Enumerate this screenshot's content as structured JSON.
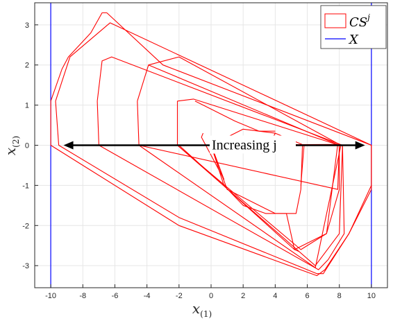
{
  "chart_data": {
    "type": "line",
    "xlabel": "x",
    "xlabel_sub": "(1)",
    "ylabel": "x",
    "ylabel_sub": "(2)",
    "xlim": [
      -11,
      11
    ],
    "ylim": [
      -3.55,
      3.55
    ],
    "xticks": [
      -10,
      -8,
      -6,
      -4,
      -2,
      0,
      2,
      4,
      6,
      8,
      10
    ],
    "yticks": [
      -3,
      -2,
      -1,
      0,
      1,
      2,
      3
    ],
    "grid": true,
    "legend_position": "top-right",
    "colors": {
      "cs": "#ff0000",
      "x": "#0000ff",
      "arrow": "#000000",
      "grid": "#e6e6e6",
      "axes": "#262626"
    },
    "legend": [
      {
        "name": "CS",
        "superscript": "j",
        "symbol": "box"
      },
      {
        "name": "X",
        "symbol": "line"
      }
    ],
    "annotation": {
      "text": "Increasing j",
      "arrow_from": [
        -9.2,
        0
      ],
      "arrow_to": [
        9.6,
        0
      ],
      "label_x": 0,
      "label_y": 0
    },
    "constraint_lines": [
      [
        [
          -10,
          -3.55
        ],
        [
          -10,
          3.55
        ]
      ],
      [
        [
          10,
          -3.55
        ],
        [
          10,
          3.55
        ]
      ]
    ],
    "series": [
      {
        "points": [
          [
            -10,
            1.1
          ],
          [
            -9.3,
            1.9
          ],
          [
            -8.9,
            2.2
          ],
          [
            -7.5,
            2.8
          ],
          [
            -6.8,
            3.3
          ],
          [
            -6.5,
            3.3
          ],
          [
            -3,
            2.0
          ],
          [
            10,
            0
          ],
          [
            10,
            -1.1
          ],
          [
            8.6,
            -2.2
          ],
          [
            7.1,
            -3.1
          ],
          [
            6.6,
            -3.25
          ],
          [
            -2,
            -2.0
          ],
          [
            -10,
            0
          ],
          [
            -10,
            1.1
          ]
        ]
      },
      {
        "points": [
          [
            -9.7,
            1.1
          ],
          [
            -9.5,
            0
          ],
          [
            -2,
            -1.8
          ],
          [
            6.6,
            -3.2
          ],
          [
            7.0,
            -3.2
          ],
          [
            8.6,
            -2.2
          ],
          [
            10,
            -1
          ],
          [
            10,
            0
          ],
          [
            -6.3,
            3.05
          ],
          [
            -8.8,
            2.2
          ],
          [
            -9.7,
            1.1
          ]
        ]
      },
      {
        "points": [
          [
            -7.1,
            1.1
          ],
          [
            -7.0,
            0
          ],
          [
            6.7,
            -3.1
          ],
          [
            7.3,
            -2.85
          ],
          [
            8.3,
            -2.2
          ],
          [
            8.2,
            0
          ],
          [
            -6.2,
            2.2
          ],
          [
            -6.8,
            2.1
          ],
          [
            -7.1,
            1.1
          ]
        ]
      },
      {
        "points": [
          [
            -4.6,
            1.1
          ],
          [
            -4.5,
            0
          ],
          [
            6.5,
            -3.05
          ],
          [
            8.1,
            0
          ],
          [
            -2,
            2.2
          ],
          [
            -3.9,
            2.0
          ],
          [
            -4.6,
            1.1
          ]
        ]
      },
      {
        "points": [
          [
            -4.5,
            0
          ],
          [
            7.9,
            -1.1
          ],
          [
            8.0,
            0
          ],
          [
            -3.9,
            2.0
          ]
        ]
      },
      {
        "points": [
          [
            -2.1,
            1.1
          ],
          [
            -2.1,
            0
          ],
          [
            5.6,
            -2.6
          ],
          [
            7.2,
            -2.2
          ],
          [
            8.0,
            -1.1
          ],
          [
            8.0,
            0
          ],
          [
            -1.1,
            1.15
          ],
          [
            -2.1,
            1.1
          ]
        ]
      },
      {
        "points": [
          [
            -2.1,
            0
          ],
          [
            6.5,
            -3.0
          ],
          [
            8.0,
            -2.2
          ],
          [
            8.2,
            0
          ]
        ]
      },
      {
        "points": [
          [
            -2.0,
            0
          ],
          [
            5.2,
            -2.6
          ],
          [
            4.7,
            -1.7
          ],
          [
            3.4,
            -1.7
          ],
          [
            2.0,
            -1.5
          ],
          [
            0.8,
            -1.0
          ],
          [
            0,
            0
          ],
          [
            2.0,
            0.4
          ],
          [
            4.0,
            0.3
          ],
          [
            5.8,
            0
          ],
          [
            5.6,
            -1.0
          ]
        ]
      },
      {
        "points": [
          [
            0,
            0
          ],
          [
            1.0,
            -1.1
          ],
          [
            2.0,
            -1.3
          ],
          [
            4.0,
            -1.7
          ],
          [
            5.3,
            -1.7
          ],
          [
            5.6,
            -1.1
          ],
          [
            5.7,
            0
          ]
        ]
      },
      {
        "points": [
          [
            -1.0,
            1.1
          ],
          [
            1.5,
            0.6
          ],
          [
            3.0,
            0.35
          ],
          [
            4.0,
            0.35
          ]
        ]
      },
      {
        "points": [
          [
            -0.5,
            0.3
          ],
          [
            -0.6,
            0.2
          ],
          [
            0.8,
            -0.85
          ],
          [
            0.2,
            -0.2
          ],
          [
            0.4,
            -0.1
          ],
          [
            3.2,
            -0.2
          ],
          [
            3.4,
            -0.15
          ],
          [
            4.0,
            0.3
          ]
        ]
      },
      {
        "points": [
          [
            -2.0,
            0
          ],
          [
            7.9,
            0.02
          ],
          [
            7.2,
            -2.2
          ],
          [
            5.2,
            -2.6
          ],
          [
            5.5,
            -2.65
          ]
        ]
      }
    ]
  }
}
